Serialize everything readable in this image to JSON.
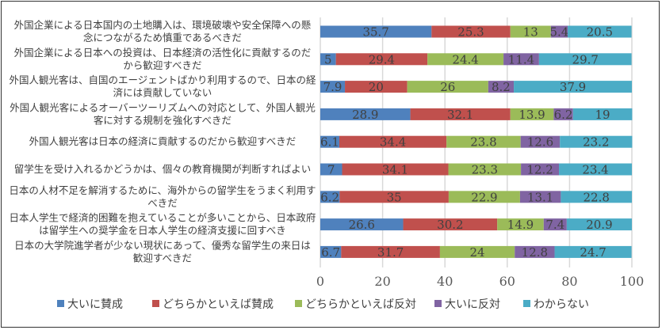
{
  "chart_data": {
    "type": "bar",
    "orientation": "horizontal",
    "stacked": true,
    "categories": [
      "外国企業による日本国内の土地購入は、環境破壊や安全保障への懸\n念につながるため慎重であるべきだ",
      "外国企業による日本への投資は、日本経済の活性化に貢献するのだ\nから歓迎すべきだ",
      "外国人観光客は、自国のエージェントばかり利用するので、日本の経\n済には貢献していない",
      "外国人観光客によるオーバーツーリズムへの対応として、外国人観光\n客に対する規制を強化すべきだ",
      "外国人観光客は日本の経済に貢献するのだから歓迎すべきだ",
      "留学生を受け入れるかどうかは、個々の教育機関が判断すればよい",
      "日本の人材不足を解消するために、海外からの留学生をうまく利用す\nべきだ",
      "日本人学生で経済的困難を抱えていることが多いことから、日本政府\nは留学生への奨学金を日本人学生の経済支援に回すべき",
      "日本の大学院進学者が少ない現状にあって、優秀な留学生の来日は\n歓迎すべきだ"
    ],
    "series": [
      {
        "name": "大いに賛成",
        "color": "#4F81BD",
        "values": [
          35.7,
          5,
          7.9,
          28.9,
          6.1,
          7,
          6.2,
          26.6,
          6.7
        ]
      },
      {
        "name": "どちらかといえば賛成",
        "color": "#C0504D",
        "values": [
          25.3,
          29.4,
          20,
          32.1,
          34.4,
          34.1,
          35,
          30.2,
          31.7
        ]
      },
      {
        "name": "どちらかといえば反対",
        "color": "#9BBB59",
        "values": [
          13,
          24.4,
          26,
          13.9,
          23.8,
          23.3,
          22.9,
          14.9,
          24
        ]
      },
      {
        "name": "大いに反対",
        "color": "#8064A2",
        "values": [
          5.4,
          11.4,
          8.2,
          6.2,
          12.6,
          12.2,
          13.1,
          7.4,
          12.8
        ]
      },
      {
        "name": "わからない",
        "color": "#4BACC6",
        "values": [
          20.5,
          29.7,
          37.9,
          19,
          23.2,
          23.4,
          22.8,
          20.9,
          24.7
        ]
      }
    ],
    "xlim": [
      0,
      100
    ],
    "xticks": [
      "0",
      "20",
      "40",
      "60",
      "80",
      "100"
    ],
    "grid": true,
    "data_labels": true,
    "legend_position": "bottom",
    "title": "",
    "xlabel": "",
    "ylabel": ""
  }
}
